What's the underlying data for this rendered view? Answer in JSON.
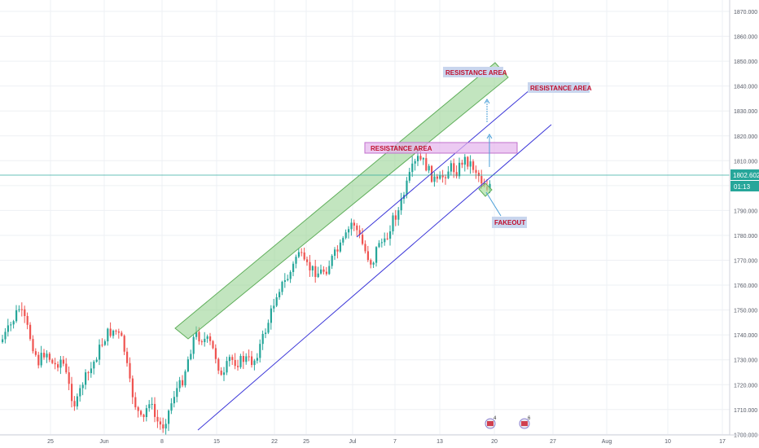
{
  "chart": {
    "price_scale": {
      "ticks": [
        "1870.000",
        "1860.000",
        "1850.000",
        "1840.000",
        "1830.000",
        "1820.000",
        "1810.000",
        "1800.000",
        "1790.000",
        "1780.000",
        "1770.000",
        "1760.000",
        "1750.000",
        "1740.000",
        "1730.000",
        "1720.000",
        "1710.000",
        "1700.000"
      ],
      "current_price": "1802.602",
      "countdown": "01:13"
    },
    "time_scale": {
      "ticks": [
        "25",
        "Jun",
        "8",
        "15",
        "22",
        "25",
        "Jul",
        "7",
        "13",
        "20",
        "27",
        "Aug",
        "10",
        "17"
      ]
    },
    "annotations": {
      "resistance_top": "RESISTANCE AREA",
      "resistance_right": "RESISTANCE AREA",
      "resistance_middle": "RESISTANCE AREA",
      "fakeout": "FAKEOUT"
    },
    "event_badges": [
      {
        "count": "4",
        "icon": "us-flag-icon"
      },
      {
        "count": "6",
        "icon": "us-flag-icon"
      }
    ],
    "colors": {
      "up_candle": "#26a69a",
      "down_candle": "#ef5350",
      "channel_line": "#3a35d8",
      "current_price_line": "#26a69a",
      "resistance_green": "#8fd08a",
      "resistance_purple": "#d8a0e0",
      "label_text": "#c0102f",
      "label_bg": "#c9d6ee",
      "arrow": "#4a9fd8"
    }
  }
}
